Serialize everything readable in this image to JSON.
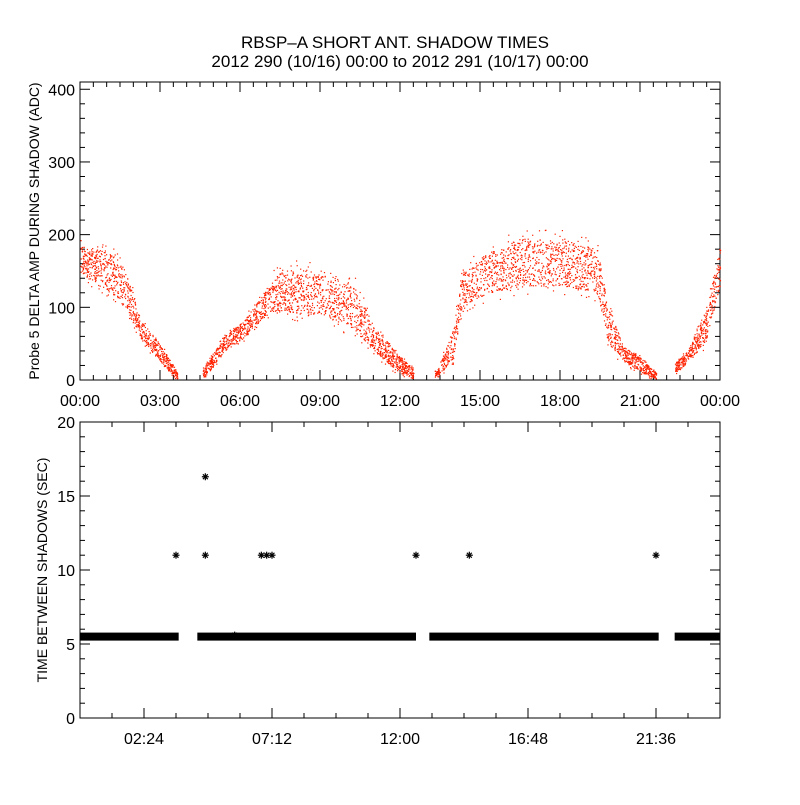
{
  "title_line1": "RBSP–A SHORT ANT. SHADOW TIMES",
  "title_line2": "2012 290 (10/16) 00:00 to 2012 291 (10/17) 00:00",
  "colors": {
    "scatter": "#ff2200",
    "axis": "#000000",
    "stars": "#000000"
  },
  "chart_data": [
    {
      "type": "scatter",
      "name": "top-panel",
      "ylabel": "Probe 5 DELTA AMP DURING SHADOW (ADC)",
      "xlabel": "",
      "xlim_hours": [
        0,
        24
      ],
      "ylim": [
        0,
        410
      ],
      "yticks": [
        0,
        100,
        200,
        300,
        400
      ],
      "ytick_labels": [
        "0",
        "100",
        "200",
        "300",
        "400"
      ],
      "xticks_hours": [
        0,
        3,
        6,
        9,
        12,
        15,
        18,
        21,
        24
      ],
      "xtick_labels": [
        "00:00",
        "03:00",
        "06:00",
        "09:00",
        "12:00",
        "15:00",
        "18:00",
        "21:00",
        "00:00"
      ],
      "envelope": [
        {
          "h": 0.0,
          "lo": 145,
          "hi": 185
        },
        {
          "h": 0.8,
          "lo": 130,
          "hi": 180
        },
        {
          "h": 1.5,
          "lo": 110,
          "hi": 165
        },
        {
          "h": 1.9,
          "lo": 85,
          "hi": 130
        },
        {
          "h": 2.3,
          "lo": 55,
          "hi": 80
        },
        {
          "h": 2.9,
          "lo": 30,
          "hi": 55
        },
        {
          "h": 3.5,
          "lo": 5,
          "hi": 20
        },
        {
          "h": 3.65,
          "lo": 2,
          "hi": 10
        },
        {
          "h": 4.7,
          "lo": 5,
          "hi": 20
        },
        {
          "h": 5.4,
          "lo": 40,
          "hi": 60
        },
        {
          "h": 6.2,
          "lo": 60,
          "hi": 85
        },
        {
          "h": 6.7,
          "lo": 80,
          "hi": 110
        },
        {
          "h": 7.5,
          "lo": 95,
          "hi": 150
        },
        {
          "h": 9.0,
          "lo": 90,
          "hi": 145
        },
        {
          "h": 10.3,
          "lo": 70,
          "hi": 130
        },
        {
          "h": 11.0,
          "lo": 40,
          "hi": 75
        },
        {
          "h": 11.8,
          "lo": 15,
          "hi": 40
        },
        {
          "h": 12.5,
          "lo": 2,
          "hi": 15
        },
        {
          "h": 13.4,
          "lo": 5,
          "hi": 15
        },
        {
          "h": 14.0,
          "lo": 30,
          "hi": 70
        },
        {
          "h": 14.3,
          "lo": 100,
          "hi": 145
        },
        {
          "h": 15.0,
          "lo": 115,
          "hi": 170
        },
        {
          "h": 16.5,
          "lo": 130,
          "hi": 195
        },
        {
          "h": 18.0,
          "lo": 130,
          "hi": 195
        },
        {
          "h": 19.4,
          "lo": 120,
          "hi": 180
        },
        {
          "h": 19.8,
          "lo": 50,
          "hi": 100
        },
        {
          "h": 20.4,
          "lo": 25,
          "hi": 45
        },
        {
          "h": 21.1,
          "lo": 10,
          "hi": 30
        },
        {
          "h": 21.6,
          "lo": 2,
          "hi": 10
        },
        {
          "h": 22.3,
          "lo": 10,
          "hi": 25
        },
        {
          "h": 22.8,
          "lo": 25,
          "hi": 40
        },
        {
          "h": 23.4,
          "lo": 50,
          "hi": 90
        },
        {
          "h": 24.0,
          "lo": 130,
          "hi": 185
        }
      ],
      "gaps_hours": [
        [
          3.65,
          4.6
        ],
        [
          12.5,
          13.3
        ],
        [
          21.6,
          22.3
        ]
      ]
    },
    {
      "type": "scatter",
      "name": "bottom-panel",
      "ylabel": "TIME BETWEEN SHADOWS (SEC)",
      "xlabel": "",
      "xlim_hours": [
        0,
        24
      ],
      "ylim": [
        0,
        20
      ],
      "yticks": [
        0,
        5,
        10,
        15,
        20
      ],
      "ytick_labels": [
        "0",
        "5",
        "10",
        "15",
        "20"
      ],
      "xticks_hours": [
        2.4,
        7.2,
        12.0,
        16.8,
        21.6
      ],
      "xtick_labels": [
        "02:24",
        "07:12",
        "12:00",
        "16:48",
        "21:36"
      ],
      "baseline_value": 5.5,
      "baseline_segments_hours": [
        [
          0.0,
          3.7
        ],
        [
          4.4,
          12.6
        ],
        [
          13.1,
          21.7
        ],
        [
          22.3,
          24.0
        ]
      ],
      "outliers": [
        {
          "h": 3.6,
          "v": 11.0
        },
        {
          "h": 4.7,
          "v": 16.3
        },
        {
          "h": 4.7,
          "v": 11.0
        },
        {
          "h": 5.8,
          "v": 5.6
        },
        {
          "h": 6.8,
          "v": 11.0
        },
        {
          "h": 7.0,
          "v": 11.0
        },
        {
          "h": 7.2,
          "v": 11.0
        },
        {
          "h": 12.6,
          "v": 11.0
        },
        {
          "h": 14.6,
          "v": 11.0
        },
        {
          "h": 21.6,
          "v": 11.0
        }
      ]
    }
  ]
}
